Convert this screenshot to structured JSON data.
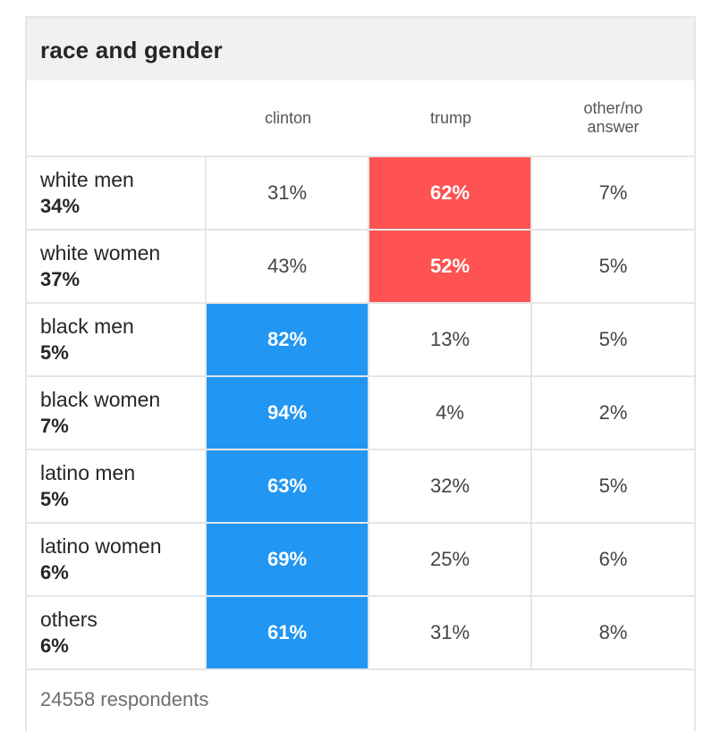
{
  "title": "race and gender",
  "colors": {
    "clinton": "#2196f3",
    "trump": "#ff5252"
  },
  "columns": [
    "clinton",
    "trump",
    "other/no answer"
  ],
  "footer": "24558 respondents",
  "chart_data": {
    "type": "table",
    "title": "race and gender",
    "columns": [
      "clinton",
      "trump",
      "other/no answer"
    ],
    "rows": [
      {
        "group": "white men",
        "share": "34%",
        "values": [
          "31%",
          "62%",
          "7%"
        ],
        "winner": "trump"
      },
      {
        "group": "white women",
        "share": "37%",
        "values": [
          "43%",
          "52%",
          "5%"
        ],
        "winner": "trump"
      },
      {
        "group": "black men",
        "share": "5%",
        "values": [
          "82%",
          "13%",
          "5%"
        ],
        "winner": "clinton"
      },
      {
        "group": "black women",
        "share": "7%",
        "values": [
          "94%",
          "4%",
          "2%"
        ],
        "winner": "clinton"
      },
      {
        "group": "latino men",
        "share": "5%",
        "values": [
          "63%",
          "32%",
          "5%"
        ],
        "winner": "clinton"
      },
      {
        "group": "latino women",
        "share": "6%",
        "values": [
          "69%",
          "25%",
          "6%"
        ],
        "winner": "clinton"
      },
      {
        "group": "others",
        "share": "6%",
        "values": [
          "61%",
          "31%",
          "8%"
        ],
        "winner": "clinton"
      }
    ],
    "footer": "24558 respondents"
  }
}
